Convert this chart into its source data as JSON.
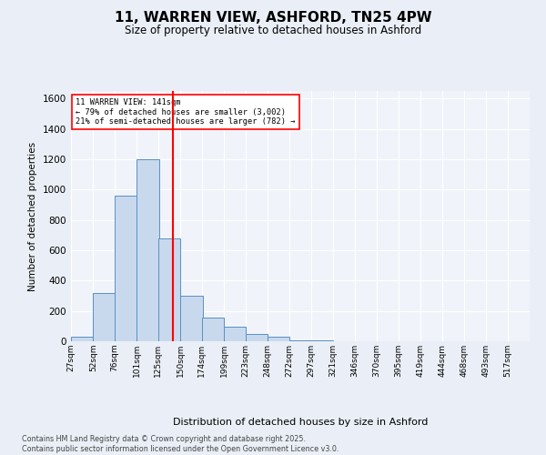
{
  "title": "11, WARREN VIEW, ASHFORD, TN25 4PW",
  "subtitle": "Size of property relative to detached houses in Ashford",
  "xlabel": "Distribution of detached houses by size in Ashford",
  "ylabel": "Number of detached properties",
  "bins": [
    27,
    52,
    76,
    101,
    125,
    150,
    174,
    199,
    223,
    248,
    272,
    297,
    321,
    346,
    370,
    395,
    419,
    444,
    468,
    493,
    517
  ],
  "bin_labels": [
    "27sqm",
    "52sqm",
    "76sqm",
    "101sqm",
    "125sqm",
    "150sqm",
    "174sqm",
    "199sqm",
    "223sqm",
    "248sqm",
    "272sqm",
    "297sqm",
    "321sqm",
    "346sqm",
    "370sqm",
    "395sqm",
    "419sqm",
    "444sqm",
    "468sqm",
    "493sqm",
    "517sqm"
  ],
  "values": [
    30,
    320,
    960,
    1200,
    680,
    300,
    155,
    95,
    50,
    28,
    8,
    5,
    3,
    2,
    1,
    0,
    0,
    1,
    0,
    0,
    0
  ],
  "bar_color": "#c8d9ed",
  "bar_edge_color": "#5a8fc2",
  "property_size": 141,
  "property_label": "11 WARREN VIEW: 141sqm",
  "pct_smaller": 79,
  "count_smaller": 3002,
  "pct_larger_semi": 21,
  "count_larger_semi": 782,
  "vline_color": "red",
  "ylim": [
    0,
    1650
  ],
  "yticks": [
    0,
    200,
    400,
    600,
    800,
    1000,
    1200,
    1400,
    1600
  ],
  "bg_color": "#eaeff7",
  "plot_bg_color": "#f0f4fa",
  "grid_color": "#ffffff",
  "footer": "Contains HM Land Registry data © Crown copyright and database right 2025.\nContains public sector information licensed under the Open Government Licence v3.0."
}
